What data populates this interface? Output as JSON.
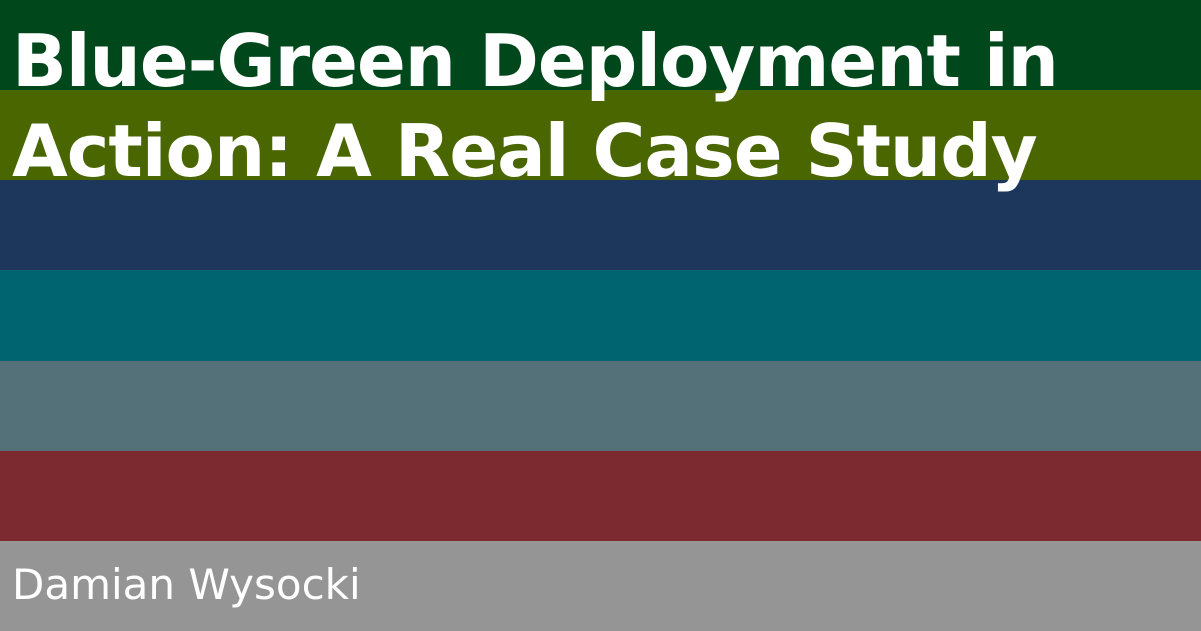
{
  "title": "Blue-Green Deployment in Action: A Real Case Study",
  "author": "Damian Wysocki",
  "stripe_colors": [
    "#00481c",
    "#4a6600",
    "#1d365c",
    "#006470",
    "#547079",
    "#7c2a2f",
    "#959595"
  ]
}
